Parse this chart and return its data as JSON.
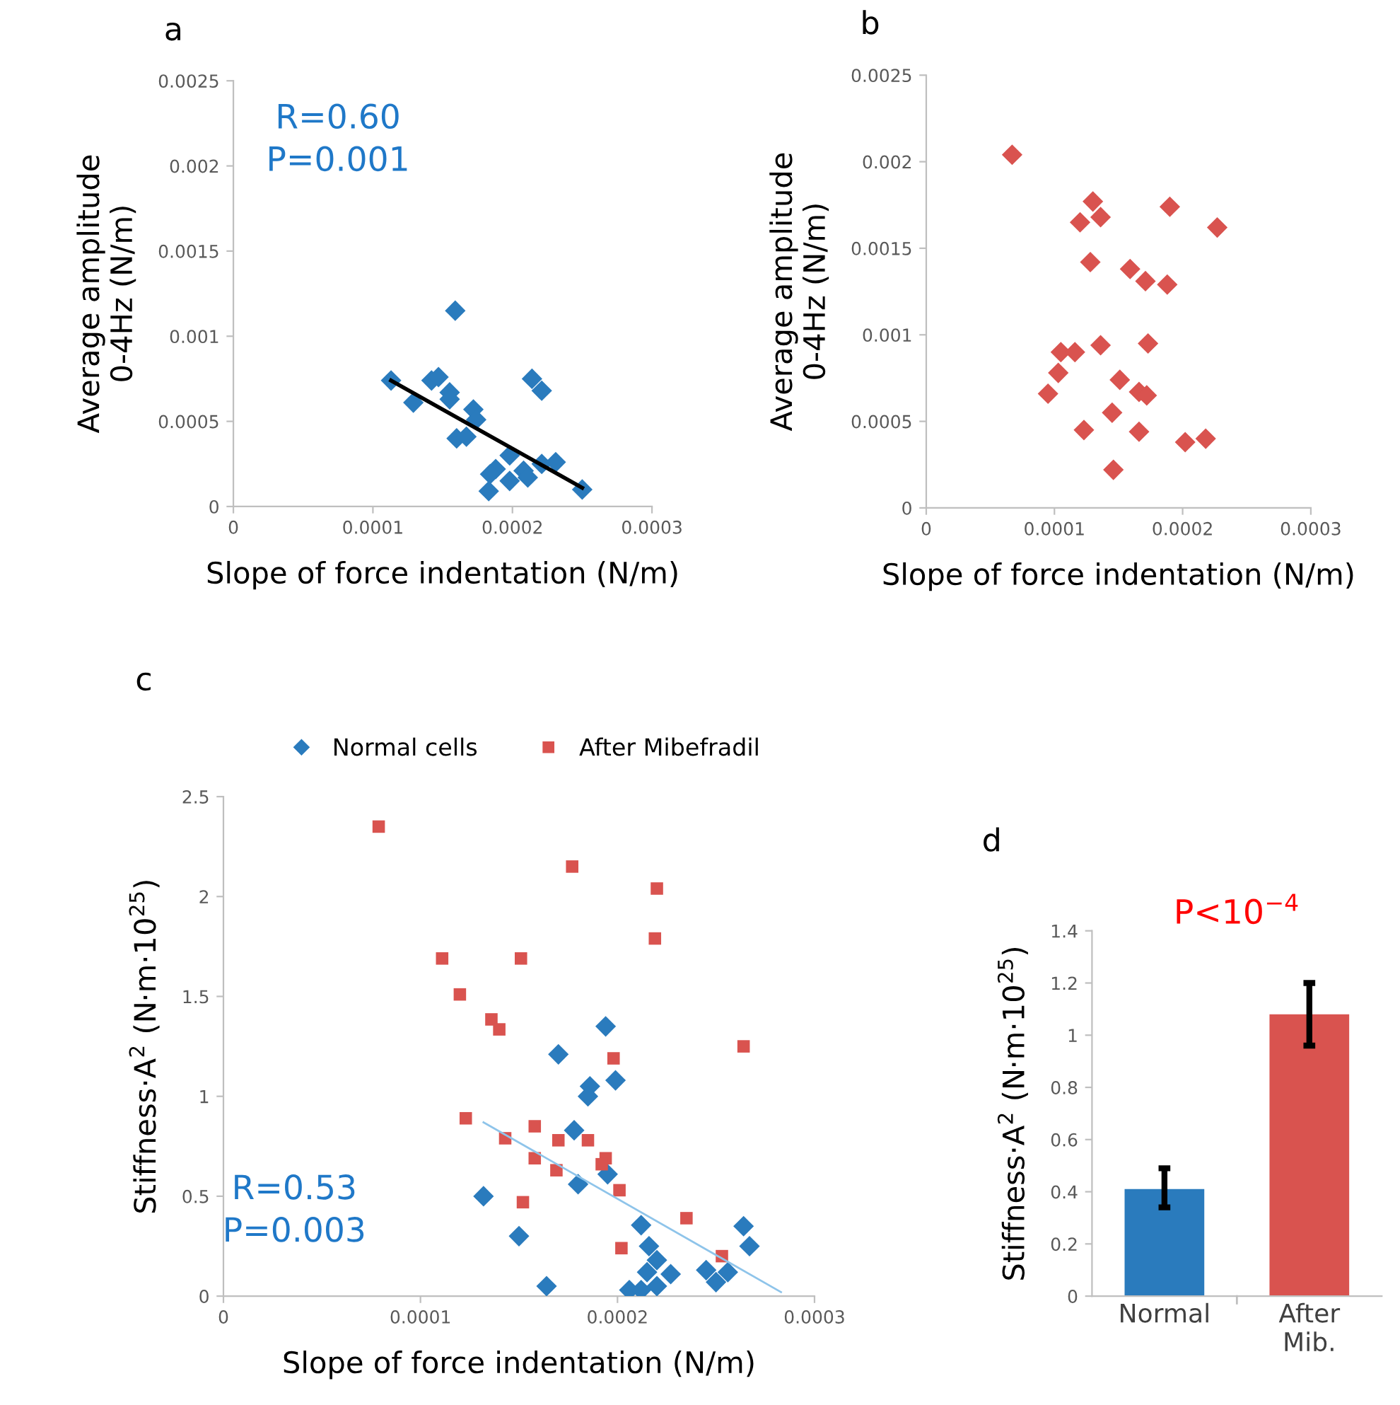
{
  "chart_data": [
    {
      "type": "scatter",
      "xlabel": "Slope of force indentation (N/m)",
      "ylabel": "Average amplitude\n0-4Hz (N/m)",
      "annotations": [
        "a",
        "R=0.60\nP=0.001"
      ],
      "xlim": [
        0,
        0.0003
      ],
      "xticks": [
        0,
        0.0001,
        0.0002,
        0.0003
      ],
      "ylim": [
        0,
        0.0025
      ],
      "yticks": [
        0,
        0.0005,
        0.001,
        0.0015,
        0.002,
        0.0025
      ],
      "grid": false,
      "legend": false,
      "marker": "diamond",
      "series": [
        {
          "color": "#2a7bbd",
          "x": [
            0.000159,
            0.000113,
            0.000129,
            0.000142,
            0.000147,
            0.000155,
            0.000155,
            0.000172,
            0.00016,
            0.000167,
            null,
            0.000174,
            0.000214,
            0.000221,
            0.000188,
            0.000184,
            0.000198,
            0.000198,
            0.000183,
            0.000208,
            0.000211,
            0.000221,
            0.000231,
            0.00025
          ],
          "values": [
            0.00115,
            0.00074,
            0.00061,
            0.00074,
            0.00076,
            0.00067,
            0.00063,
            0.00057,
            0.0004,
            0.00041,
            null,
            0.00051,
            0.00075,
            0.00068,
            0.00022,
            0.00019,
            0.0003,
            0.00015,
            9e-05,
            0.00021,
            0.00017,
            0.00025,
            0.00026,
            0.0001
          ]
        },
        {
          "type": "line",
          "color": "#000000",
          "marker": "none",
          "x": [
            0.000113,
            0.00025
          ],
          "values": [
            0.00074,
            0.00011
          ]
        }
      ]
    },
    {
      "type": "scatter",
      "xlabel": "Slope of force indentation (N/m)",
      "ylabel": "Average amplitude\n0-4Hz (N/m)",
      "annotations": [
        "b"
      ],
      "xlim": [
        0,
        0.0003
      ],
      "xticks": [
        0,
        0.0001,
        0.0002,
        0.0003
      ],
      "ylim": [
        0,
        0.0025
      ],
      "yticks": [
        0,
        0.0005,
        0.001,
        0.0015,
        0.002,
        0.0025
      ],
      "grid": false,
      "legend": false,
      "marker": "diamond",
      "series": [
        {
          "color": "#d9534f",
          "x": [
            6.7e-05,
            0.00013,
            0.00012,
            0.000136,
            0.00019,
            0.000227,
            0.000128,
            0.000159,
            0.000171,
            0.000188,
            0.000105,
            0.000116,
            0.000136,
            0.000173,
            0.000103,
            9.5e-05,
            0.000151,
            0.000166,
            0.000172,
            0.000145,
            0.000123,
            0.000166,
            0.000202,
            0.000218,
            0.000146
          ],
          "values": [
            0.00204,
            0.00177,
            0.00165,
            0.00168,
            0.00174,
            0.00162,
            0.00142,
            0.00138,
            0.00131,
            0.00129,
            0.0009,
            0.0009,
            0.00094,
            0.00095,
            0.00078,
            0.00066,
            0.00074,
            0.00067,
            0.00065,
            0.00055,
            0.00045,
            0.00044,
            0.00038,
            0.0004,
            0.00022
          ]
        }
      ]
    },
    {
      "type": "scatter",
      "xlabel": "Slope of force indentation (N/m)",
      "ylabel": "Stiffness·A$^{2}$ (N·m·10$^{25}$)",
      "annotations": [
        "c",
        "R=0.53\nP=0.003"
      ],
      "xlim": [
        0,
        0.0003
      ],
      "xticks": [
        0,
        0.0001,
        0.0002,
        0.0003
      ],
      "ylim": [
        0,
        2.5
      ],
      "yticks": [
        0,
        0.5,
        1,
        1.5,
        2,
        2.5
      ],
      "grid": false,
      "legend": "top",
      "series": [
        {
          "name": "Normal cells",
          "color": "#2a7bbd",
          "marker": "diamond",
          "x": [
            0.000194,
            0.00017,
            0.000199,
            0.000186,
            0.000185,
            0.000178,
            0.000195,
            0.00018,
            0.000132,
            0.00015,
            0.000212,
            0.000216,
            0.00022,
            0.000264,
            0.000267,
            null,
            0.000215,
            0.000227,
            0.000245,
            0.000256,
            0.000206,
            0.000212,
            0.00022,
            0.00025,
            0.000164
          ],
          "values": [
            1.35,
            1.21,
            1.08,
            1.05,
            1.0,
            0.83,
            0.61,
            0.56,
            0.5,
            0.3,
            0.355,
            0.25,
            0.18,
            0.35,
            0.25,
            null,
            0.12,
            0.11,
            0.13,
            0.12,
            0.03,
            0.03,
            0.05,
            0.07,
            0.05
          ]
        },
        {
          "name": "After Mibefradil",
          "color": "#d9534f",
          "marker": "square",
          "x": [
            7.88e-05,
            0.000177,
            0.00022,
            0.000219,
            0.000111,
            0.000151,
            0.00012,
            0.000136,
            0.00014,
            0.000198,
            0.000264,
            0.000123,
            0.000158,
            0.000143,
            0.00017,
            0.000185,
            0.000158,
            0.000194,
            0.000192,
            0.000169,
            0.000201,
            0.000152,
            0.000235,
            0.000202,
            0.000253
          ],
          "values": [
            2.35,
            2.15,
            2.04,
            1.79,
            1.69,
            1.69,
            1.51,
            1.385,
            1.335,
            1.19,
            1.25,
            0.89,
            0.85,
            0.79,
            0.78,
            0.78,
            0.69,
            0.69,
            0.66,
            0.63,
            0.53,
            0.47,
            0.39,
            0.24,
            0.2
          ]
        },
        {
          "type": "line",
          "color": "#8ec4ea",
          "marker": "none",
          "x": [
            0.000132,
            0.000283
          ],
          "values": [
            0.87,
            0.02
          ]
        }
      ]
    },
    {
      "type": "bar",
      "ylabel": "Stiffness·A$^{2}$ (N·m·10$^{25}$)",
      "annotations": [
        "d",
        "P<10$^{−4}$"
      ],
      "categories": [
        "Normal",
        "After\nMib."
      ],
      "values": [
        0.41,
        1.08
      ],
      "colors": [
        "#2a7bbd",
        "#d9534f"
      ],
      "errors": [
        [
          0.34,
          0.49
        ],
        [
          0.96,
          1.2
        ]
      ],
      "ylim": [
        0,
        1.4
      ],
      "yticks": [
        0,
        0.2,
        0.4,
        0.6,
        0.8,
        1,
        1.2,
        1.4
      ],
      "grid": false,
      "legend": false
    }
  ]
}
